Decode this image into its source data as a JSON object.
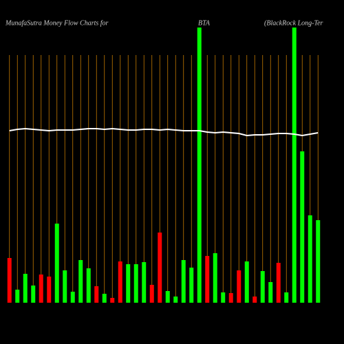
{
  "chart_data": {
    "type": "bar",
    "title": "MunafaSutra  Money Flow  Charts for",
    "subtitle": "BTA",
    "annotation": "(BlackRock Long-Ter",
    "categories": [
      null,
      null,
      null,
      null,
      null,
      null,
      null,
      null,
      null,
      null,
      null,
      null,
      null,
      null,
      null,
      null,
      null,
      null,
      null,
      null,
      null,
      null,
      null,
      null,
      null,
      null,
      null,
      null,
      null,
      null,
      null,
      null,
      null,
      null,
      null,
      null,
      null,
      null,
      null,
      null
    ],
    "series": [
      {
        "colors": [
          "#ff0000",
          "#00ff00",
          "#00ff00",
          "#00ff00",
          "#ff0000",
          "#ff0000",
          "#00ff00",
          "#00ff00",
          "#00ff00",
          "#00ff00",
          "#00ff00",
          "#ff0000",
          "#00ff00",
          "#ff0000",
          "#ff0000",
          "#00ff00",
          "#00ff00",
          "#00ff00",
          "#ff0000",
          "#ff0000",
          "#00ff00",
          "#00ff00",
          "#00ff00",
          "#00ff00",
          "#00ff00",
          "#ff0000",
          "#00ff00",
          "#00ff00",
          "#ff0000",
          "#ff0000",
          "#00ff00",
          "#ff0000",
          "#00ff00",
          "#00ff00",
          "#ff0000",
          "#00ff00",
          "#00ff00",
          "#00ff00",
          "#00ff00",
          "#00ff00"
        ],
        "values": [
          65,
          19,
          42,
          25,
          41,
          38,
          115,
          47,
          16,
          62,
          50,
          24,
          13,
          7,
          60,
          56,
          56,
          59,
          26,
          102,
          17,
          9,
          62,
          51,
          400,
          68,
          72,
          15,
          14,
          47,
          60,
          9,
          46,
          30,
          58,
          15,
          400,
          220,
          127,
          120
        ]
      },
      {
        "type": "line",
        "color": "#ffffff",
        "values": [
          250,
          252,
          253,
          252,
          251,
          250,
          251,
          251,
          251,
          252,
          253,
          253,
          252,
          253,
          252,
          251,
          251,
          252,
          252,
          251,
          252,
          251,
          250,
          250,
          250,
          248,
          247,
          248,
          247,
          246,
          243,
          244,
          244,
          245,
          246,
          246,
          245,
          243,
          245,
          247
        ]
      }
    ],
    "grid_color": "#c47a00",
    "ylim": [
      0,
      400
    ]
  }
}
